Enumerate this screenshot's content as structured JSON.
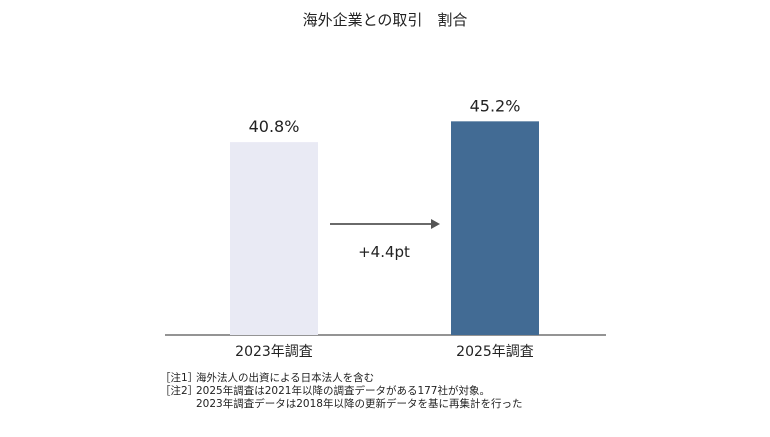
{
  "chart_data": {
    "type": "bar",
    "title": "海外企業との取引　割合",
    "categories": [
      "2023年調査",
      "2025年調査"
    ],
    "values": [
      40.8,
      45.2
    ],
    "value_labels": [
      "40.8%",
      "45.2%"
    ],
    "bar_colors": [
      "#e9eaf4",
      "#426b94"
    ],
    "ylim": [
      0,
      55
    ],
    "grid": false,
    "legend": "none",
    "annotation": {
      "text": "+4.4pt",
      "arrow": "from 2023年調査 to 2025年調査"
    }
  },
  "notes": [
    {
      "tag": "［注1］",
      "text": "海外法人の出資による日本法人を含む"
    },
    {
      "tag": "［注2］",
      "text": "2025年調査は2021年以降の調査データがある177社が対象。"
    }
  ],
  "note_continuation": "2023年調査データは2018年以降の更新データを基に再集計を行った",
  "colors": {
    "axis": "#555555",
    "arrow": "#555555"
  }
}
